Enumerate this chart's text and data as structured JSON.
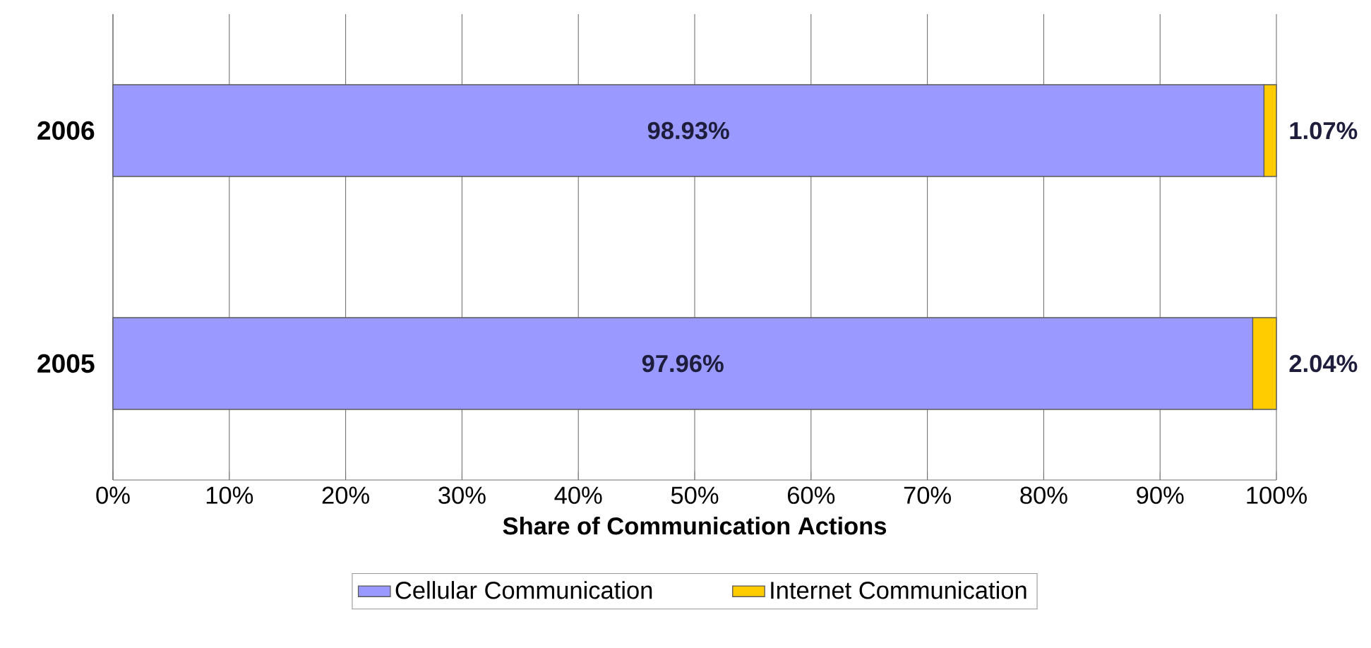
{
  "chart_data": {
    "type": "bar",
    "orientation": "horizontal",
    "stacked": true,
    "xlabel": "Share of Communication Actions",
    "categories": [
      "2006",
      "2005"
    ],
    "series": [
      {
        "name": "Cellular Communication",
        "color": "#9999ff",
        "values": [
          98.93,
          97.96
        ],
        "value_labels": [
          "98.93%",
          "97.96%"
        ]
      },
      {
        "name": "Internet Communication",
        "color": "#ffcc00",
        "values": [
          1.07,
          2.04
        ],
        "value_labels": [
          "1.07%",
          "2.04%"
        ]
      }
    ],
    "xlim": [
      0,
      100
    ],
    "xticks": [
      {
        "value": 0,
        "label": "0%"
      },
      {
        "value": 10,
        "label": "10%"
      },
      {
        "value": 20,
        "label": "20%"
      },
      {
        "value": 30,
        "label": "30%"
      },
      {
        "value": 40,
        "label": "40%"
      },
      {
        "value": 50,
        "label": "50%"
      },
      {
        "value": 60,
        "label": "60%"
      },
      {
        "value": 70,
        "label": "70%"
      },
      {
        "value": 80,
        "label": "80%"
      },
      {
        "value": 90,
        "label": "90%"
      },
      {
        "value": 100,
        "label": "100%"
      }
    ],
    "grid": "x",
    "legend": "bottom"
  }
}
